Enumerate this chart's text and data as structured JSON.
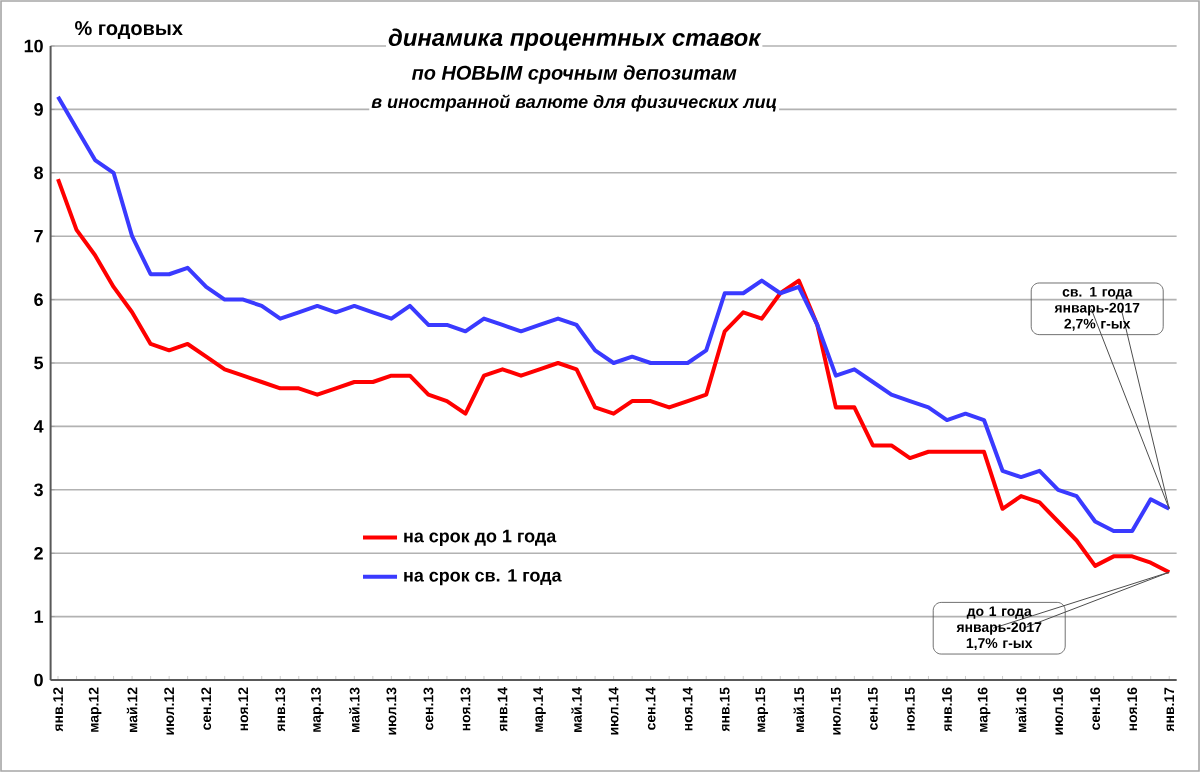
{
  "chart_data": {
    "type": "line",
    "title": "динамика процентных ставок",
    "subtitle": "по **НОВЫМ** срочным депозитам",
    "ylabel": "% годовых",
    "annotations": [
      "в иностранной валюте для физических лиц",
      "св. 1 года январь-2017 2,7% г-ых",
      "до 1 года январь-2017 1,7% г-ых"
    ],
    "categories": [
      "янв.12",
      null,
      "мар.12",
      null,
      "май.12",
      null,
      "июл.12",
      null,
      "сен.12",
      null,
      "ноя.12",
      null,
      "янв.13",
      null,
      "мар.13",
      null,
      "май.13",
      null,
      "июл.13",
      null,
      "сен.13",
      null,
      "ноя.13",
      null,
      "янв.14",
      null,
      "мар.14",
      null,
      "май.14",
      null,
      "июл.14",
      null,
      "сен.14",
      null,
      "ноя.14",
      null,
      "янв.15",
      null,
      "мар.15",
      null,
      "май.15",
      null,
      "июл.15",
      null,
      "сен.15",
      null,
      "ноя.15",
      null,
      "янв.16",
      null,
      "мар.16",
      null,
      "май.16",
      null,
      "июл.16",
      null,
      "сен.16",
      null,
      "ноя.16",
      null,
      "янв.17"
    ],
    "series": [
      {
        "name": "на срок до 1 года",
        "color": "#ff0000",
        "values": [
          7.9,
          7.1,
          6.7,
          6.2,
          5.8,
          5.3,
          5.2,
          5.3,
          5.1,
          4.9,
          4.8,
          4.7,
          4.6,
          4.6,
          4.5,
          4.6,
          4.7,
          4.7,
          4.8,
          4.8,
          4.5,
          4.4,
          4.2,
          4.8,
          4.9,
          4.8,
          4.9,
          5.0,
          4.9,
          4.3,
          4.2,
          4.4,
          4.4,
          4.3,
          4.4,
          4.5,
          5.5,
          5.8,
          5.7,
          6.1,
          6.3,
          5.6,
          4.3,
          4.3,
          3.7,
          3.7,
          3.5,
          3.6,
          3.6,
          3.6,
          3.6,
          2.7,
          2.9,
          2.8,
          2.5,
          2.2,
          1.8,
          1.95,
          1.95,
          1.85,
          1.7
        ]
      },
      {
        "name": "на срок св. 1 года",
        "color": "#3a3aff",
        "values": [
          9.2,
          8.7,
          8.2,
          8.0,
          7.0,
          6.4,
          6.4,
          6.5,
          6.2,
          6.0,
          6.0,
          5.9,
          5.7,
          5.8,
          5.9,
          5.8,
          5.9,
          5.8,
          5.7,
          5.9,
          5.6,
          5.6,
          5.5,
          5.7,
          5.6,
          5.5,
          5.6,
          5.7,
          5.6,
          5.2,
          5.0,
          5.1,
          5.0,
          5.0,
          5.0,
          5.2,
          6.1,
          6.1,
          6.3,
          6.1,
          6.2,
          5.6,
          4.8,
          4.9,
          4.7,
          4.5,
          4.4,
          4.3,
          4.1,
          4.2,
          4.1,
          3.3,
          3.2,
          3.3,
          3.0,
          2.9,
          2.5,
          2.35,
          2.35,
          2.85,
          2.7
        ]
      }
    ],
    "ylim": [
      0,
      10
    ],
    "yticks": [
      0,
      1,
      2,
      3,
      4,
      5,
      6,
      7,
      8,
      9,
      10
    ],
    "grid": "y",
    "legend": "bottom",
    "marker": "none",
    "line_style": "solid"
  }
}
